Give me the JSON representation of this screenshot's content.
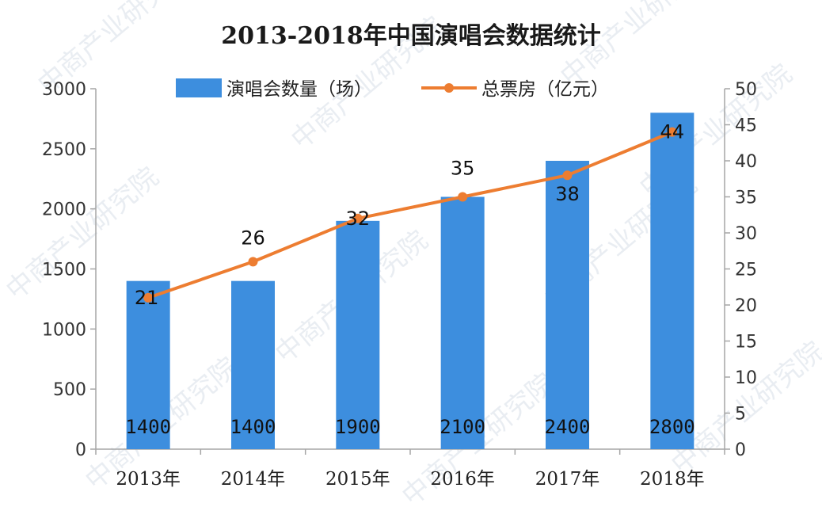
{
  "chart_data": {
    "type": "bar",
    "title": "2013-2018年中国演唱会数据统计",
    "categories": [
      "2013年",
      "2014年",
      "2015年",
      "2016年",
      "2017年",
      "2018年"
    ],
    "series": [
      {
        "name": "演唱会数量（场）",
        "type": "bar",
        "axis": "left",
        "color": "#3d8ede",
        "values": [
          1400,
          1400,
          1900,
          2100,
          2400,
          2800
        ],
        "labels": [
          "1400",
          "1400",
          "1900",
          "2100",
          "2400",
          "2800"
        ]
      },
      {
        "name": "总票房（亿元）",
        "type": "line",
        "axis": "right",
        "color": "#ed7d31",
        "values": [
          21,
          26,
          32,
          35,
          38,
          44
        ],
        "labels": [
          "21",
          "26",
          "32",
          "35",
          "38",
          "44"
        ]
      }
    ],
    "y_left": {
      "ylim": [
        0,
        3000
      ],
      "ticks": [
        "0",
        "500",
        "1000",
        "1500",
        "2000",
        "2500",
        "3000"
      ]
    },
    "y_right": {
      "ylim": [
        0,
        50
      ],
      "ticks": [
        "0",
        "5",
        "10",
        "15",
        "20",
        "25",
        "30",
        "35",
        "40",
        "45",
        "50"
      ]
    },
    "legend": {
      "position": "top"
    },
    "grid": false
  },
  "watermark": {
    "text": "中商产业研究院"
  }
}
